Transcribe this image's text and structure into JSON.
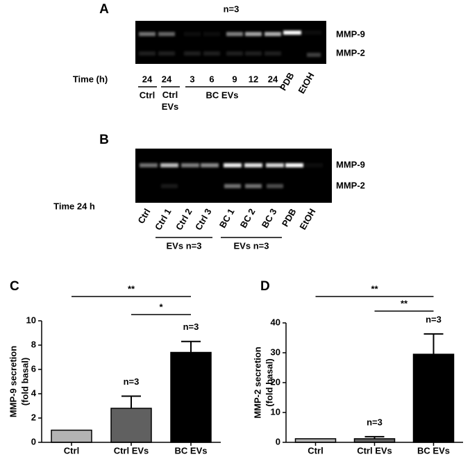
{
  "gels": [
    {
      "label": "A",
      "note": "n=3",
      "bands": [
        "MMP-9",
        "MMP-2"
      ],
      "time_label": "Time (h)",
      "times": [
        "24",
        "24",
        "3",
        "6",
        "9",
        "12",
        "24"
      ],
      "rotated": [
        "PDB",
        "EtOH"
      ],
      "groups": [
        "Ctrl",
        "Ctrl EVs",
        "BC EVs"
      ]
    },
    {
      "label": "B",
      "bands": [
        "MMP-9",
        "MMP-2"
      ],
      "time_label": "Time 24 h",
      "lanes": [
        "Ctrl",
        "Ctrl 1",
        "Ctrl 2",
        "Ctrl 3",
        "BC 1",
        "BC 2",
        "BC 3",
        "PDB",
        "EtOH"
      ],
      "groups": [
        "EVs n=3",
        "EVs n=3"
      ]
    }
  ],
  "chart_data": [
    {
      "type": "bar",
      "panel": "C",
      "ylabel": [
        "MMP-9 secretion",
        "(fold basal)"
      ],
      "categories": [
        "Ctrl",
        "Ctrl EVs",
        "BC EVs"
      ],
      "values": [
        1.0,
        2.8,
        7.4
      ],
      "errors": [
        0,
        1.0,
        0.9
      ],
      "colors": [
        "#b3b3b3",
        "#606060",
        "#000000"
      ],
      "ylim": [
        0,
        10
      ],
      "yticks": [
        0,
        2,
        4,
        6,
        8,
        10
      ],
      "bar_labels": [
        null,
        "n=3",
        "n=3"
      ],
      "significance": [
        {
          "from": 0,
          "to": 2,
          "label": "**"
        },
        {
          "from": 1,
          "to": 2,
          "label": "*"
        }
      ]
    },
    {
      "type": "bar",
      "panel": "D",
      "ylabel": [
        "MMP-2 secretion",
        "(fold basal)"
      ],
      "categories": [
        "Ctrl",
        "Ctrl EVs",
        "BC EVs"
      ],
      "values": [
        1.2,
        1.2,
        29.5
      ],
      "errors": [
        0,
        0.7,
        6.8
      ],
      "colors": [
        "#b3b3b3",
        "#606060",
        "#000000"
      ],
      "ylim": [
        0,
        40
      ],
      "yticks": [
        0,
        10,
        20,
        30,
        40
      ],
      "bar_labels": [
        null,
        "n=3",
        "n=3"
      ],
      "significance": [
        {
          "from": 0,
          "to": 2,
          "label": "**"
        },
        {
          "from": 1,
          "to": 2,
          "label": "**"
        }
      ]
    }
  ]
}
